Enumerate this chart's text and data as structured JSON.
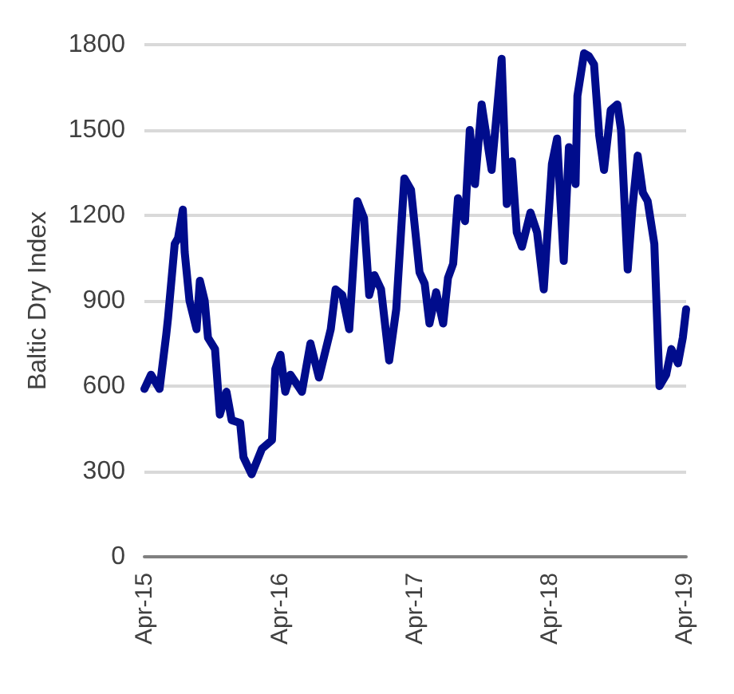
{
  "chart_data": {
    "type": "line",
    "ylabel": "Baltic Dry Index",
    "x": [
      "2015-04-01",
      "2015-04-19",
      "2015-05-12",
      "2015-05-30",
      "2015-06-04",
      "2015-06-22",
      "2015-07-01",
      "2015-07-14",
      "2015-07-19",
      "2015-08-01",
      "2015-08-20",
      "2015-08-29",
      "2015-09-11",
      "2015-09-20",
      "2015-10-09",
      "2015-10-22",
      "2015-11-09",
      "2015-11-23",
      "2015-12-16",
      "2015-12-25",
      "2016-01-16",
      "2016-02-13",
      "2016-03-11",
      "2016-03-20",
      "2016-04-03",
      "2016-04-16",
      "2016-04-30",
      "2016-05-31",
      "2016-06-23",
      "2016-07-16",
      "2016-08-17",
      "2016-08-30",
      "2016-09-17",
      "2016-10-06",
      "2016-10-28",
      "2016-11-15",
      "2016-11-29",
      "2016-12-13",
      "2016-12-31",
      "2017-01-22",
      "2017-02-10",
      "2017-03-04",
      "2017-03-22",
      "2017-04-14",
      "2017-04-28",
      "2017-05-11",
      "2017-05-29",
      "2017-06-17",
      "2017-06-30",
      "2017-07-14",
      "2017-07-27",
      "2017-08-15",
      "2017-08-28",
      "2017-09-11",
      "2017-09-29",
      "2017-10-26",
      "2017-11-22",
      "2017-12-06",
      "2017-12-20",
      "2018-01-02",
      "2018-01-16",
      "2018-02-08",
      "2018-02-26",
      "2018-03-16",
      "2018-04-07",
      "2018-04-21",
      "2018-05-09",
      "2018-05-23",
      "2018-06-10",
      "2018-06-15",
      "2018-07-03",
      "2018-07-16",
      "2018-07-30",
      "2018-08-13",
      "2018-08-26",
      "2018-09-13",
      "2018-10-01",
      "2018-10-11",
      "2018-10-29",
      "2018-11-11",
      "2018-11-25",
      "2018-12-09",
      "2018-12-22",
      "2019-01-09",
      "2019-01-23",
      "2019-02-10",
      "2019-02-24",
      "2019-03-14",
      "2019-03-27",
      "2019-04-05"
    ],
    "series": [
      {
        "color": "#000c8c",
        "values": [
          590,
          640,
          590,
          780,
          840,
          1100,
          1120,
          1220,
          1070,
          900,
          800,
          970,
          900,
          770,
          730,
          500,
          580,
          480,
          470,
          350,
          290,
          380,
          410,
          660,
          710,
          580,
          640,
          580,
          750,
          630,
          800,
          940,
          920,
          800,
          1250,
          1190,
          920,
          990,
          940,
          690,
          870,
          1330,
          1290,
          1000,
          960,
          820,
          930,
          820,
          980,
          1030,
          1260,
          1180,
          1500,
          1310,
          1590,
          1360,
          1750,
          1240,
          1390,
          1140,
          1090,
          1210,
          1140,
          940,
          1380,
          1470,
          1040,
          1440,
          1310,
          1620,
          1770,
          1760,
          1730,
          1480,
          1360,
          1570,
          1590,
          1500,
          1010,
          1230,
          1410,
          1280,
          1250,
          1100,
          600,
          640,
          730,
          680,
          770,
          870
        ]
      }
    ],
    "xlim": [
      "2015-04-01",
      "2019-04-05"
    ],
    "xticks": [
      {
        "value": "2015-04-01",
        "label": "Apr-15"
      },
      {
        "value": "2016-04-01",
        "label": "Apr-16"
      },
      {
        "value": "2017-04-01",
        "label": "Apr-17"
      },
      {
        "value": "2018-04-01",
        "label": "Apr-18"
      },
      {
        "value": "2019-04-01",
        "label": "Apr-19"
      }
    ],
    "ylim": [
      0,
      1800
    ],
    "yticks": [
      0,
      300,
      600,
      900,
      1200,
      1500,
      1800
    ],
    "grid": "y",
    "marker": "none",
    "line_style": "solid"
  }
}
